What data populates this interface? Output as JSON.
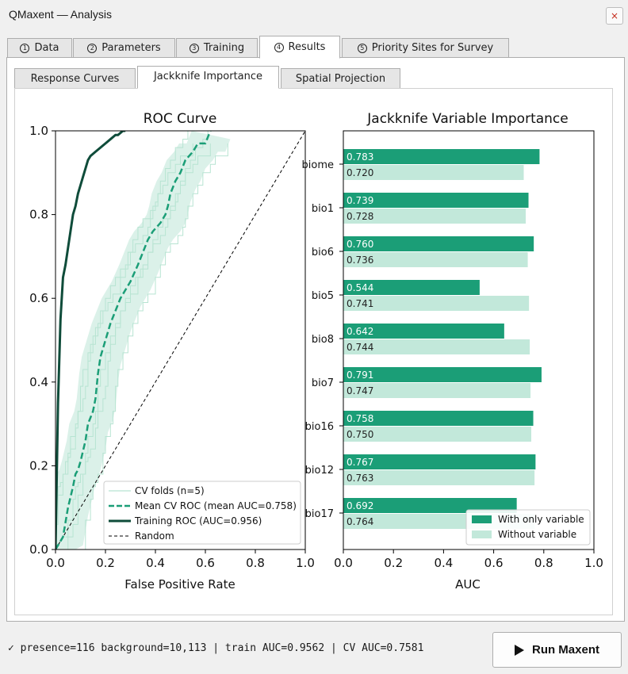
{
  "window": {
    "title": "QMaxent — Analysis",
    "close_glyph": "×"
  },
  "tabs": [
    {
      "num": "1",
      "label": "Data",
      "active": false
    },
    {
      "num": "2",
      "label": "Parameters",
      "active": false
    },
    {
      "num": "3",
      "label": "Training",
      "active": false
    },
    {
      "num": "4",
      "label": "Results",
      "active": true
    },
    {
      "num": "5",
      "label": "Priority Sites for Survey",
      "active": false
    }
  ],
  "subtabs": [
    {
      "label": "Response Curves",
      "active": false
    },
    {
      "label": "Jackknife Importance",
      "active": true
    },
    {
      "label": "Spatial Projection",
      "active": false
    }
  ],
  "status": {
    "check_glyph": "✓",
    "text": "presence=116  background=10,113  |  train AUC=0.9562  |  CV AUC=0.7581"
  },
  "run_button": {
    "label": "Run Maxent",
    "icon": "play-icon"
  },
  "chart_data": [
    {
      "type": "line",
      "title": "ROC Curve",
      "xlabel": "False Positive Rate",
      "ylabel": "",
      "xlim": [
        0,
        1
      ],
      "ylim": [
        0,
        1
      ],
      "xticks": [
        "0.0",
        "0.2",
        "0.4",
        "0.6",
        "0.8",
        "1.0"
      ],
      "yticks": [
        "0.0",
        "0.2",
        "0.4",
        "0.6",
        "0.8",
        "1.0"
      ],
      "grid": false,
      "legend_position": "lower-right",
      "colors": {
        "fold": "#b7e4d2",
        "band": "#cfece1",
        "mean": "#1b9e77",
        "train": "#0f4c3a",
        "random": "#000000"
      },
      "series": [
        {
          "name": "CV folds (n=5)",
          "style": "thin-fill"
        },
        {
          "name": "Mean CV ROC (mean AUC=0.758)",
          "style": "dashed",
          "x": [
            0.0,
            0.03,
            0.05,
            0.07,
            0.08,
            0.09,
            0.1,
            0.12,
            0.13,
            0.15,
            0.16,
            0.17,
            0.18,
            0.2,
            0.22,
            0.24,
            0.26,
            0.28,
            0.3,
            0.33,
            0.35,
            0.37,
            0.39,
            0.42,
            0.44,
            0.45,
            0.46,
            0.48,
            0.5,
            0.52,
            0.55,
            0.57,
            0.6,
            0.62
          ],
          "y": [
            0.0,
            0.03,
            0.1,
            0.15,
            0.18,
            0.19,
            0.21,
            0.26,
            0.3,
            0.33,
            0.36,
            0.42,
            0.46,
            0.5,
            0.54,
            0.57,
            0.6,
            0.62,
            0.64,
            0.68,
            0.71,
            0.74,
            0.76,
            0.78,
            0.8,
            0.82,
            0.85,
            0.88,
            0.9,
            0.93,
            0.95,
            0.97,
            0.97,
            1.0
          ]
        },
        {
          "name": "Training ROC (AUC=0.956)",
          "style": "solid",
          "x": [
            0.0,
            0.01,
            0.015,
            0.02,
            0.025,
            0.03,
            0.04,
            0.05,
            0.06,
            0.07,
            0.08,
            0.09,
            0.1,
            0.11,
            0.12,
            0.13,
            0.14,
            0.16,
            0.18,
            0.2,
            0.22,
            0.24,
            0.25,
            0.27,
            0.28
          ],
          "y": [
            0.0,
            0.35,
            0.45,
            0.55,
            0.6,
            0.65,
            0.68,
            0.72,
            0.76,
            0.8,
            0.82,
            0.85,
            0.87,
            0.89,
            0.91,
            0.93,
            0.94,
            0.95,
            0.96,
            0.97,
            0.98,
            0.99,
            0.99,
            1.0,
            1.0
          ]
        },
        {
          "name": "Random",
          "style": "dotted",
          "x": [
            0,
            1
          ],
          "y": [
            0,
            1
          ]
        }
      ]
    },
    {
      "type": "bar",
      "orientation": "horizontal",
      "title": "Jackknife Variable Importance",
      "xlabel": "AUC",
      "xlim": [
        0,
        1
      ],
      "xticks": [
        "0.0",
        "0.2",
        "0.4",
        "0.6",
        "0.8",
        "1.0"
      ],
      "grid": false,
      "legend_position": "lower-right",
      "colors": {
        "with": "#1b9e77",
        "without": "#c2e8da"
      },
      "categories": [
        "biome",
        "bio1",
        "bio6",
        "bio5",
        "bio8",
        "bio7",
        "bio16",
        "bio12",
        "bio17"
      ],
      "series": [
        {
          "name": "With only variable",
          "values": [
            0.783,
            0.739,
            0.76,
            0.544,
            0.642,
            0.791,
            0.758,
            0.767,
            0.692
          ]
        },
        {
          "name": "Without variable",
          "values": [
            0.72,
            0.728,
            0.736,
            0.741,
            0.744,
            0.747,
            0.75,
            0.763,
            0.764
          ]
        }
      ],
      "data_labels": {
        "with": [
          "0.783",
          "0.739",
          "0.760",
          "0.544",
          "0.642",
          "0.791",
          "0.758",
          "0.767",
          "0.692"
        ],
        "without": [
          "0.720",
          "0.728",
          "0.736",
          "0.741",
          "0.744",
          "0.747",
          "0.750",
          "0.763",
          "0.764"
        ]
      }
    }
  ]
}
